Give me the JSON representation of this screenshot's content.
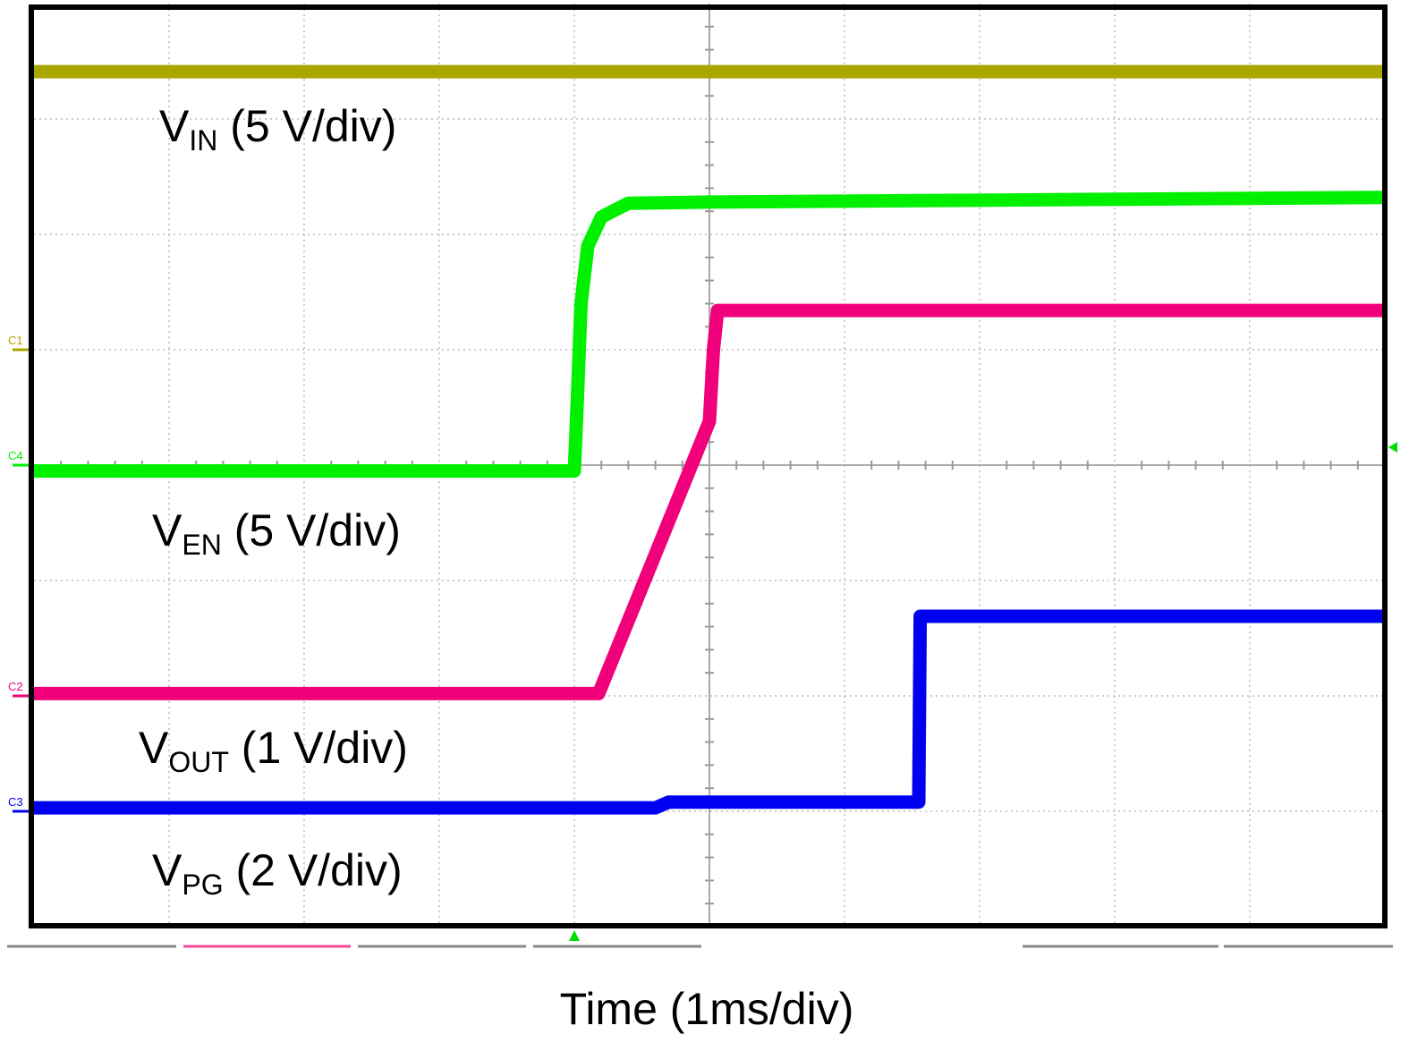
{
  "chart_data": {
    "type": "line",
    "title": "",
    "xlabel": "Time (1ms/div)",
    "ylabel": "",
    "x_unit": "ms",
    "xlim": [
      0,
      10
    ],
    "ylim_divisions": [
      -4,
      4
    ],
    "grid": true,
    "trigger_time_ms": 4.0,
    "series": [
      {
        "name": "VIN",
        "label_main": "V",
        "label_sub": "IN",
        "label_scale": " (5 V/div)",
        "channel": "C1",
        "channel_ref_div": 1.0,
        "color": "#aaa600",
        "points": [
          [
            0,
            3.41
          ],
          [
            10,
            3.41
          ]
        ]
      },
      {
        "name": "VEN",
        "label_main": "V",
        "label_sub": "EN",
        "label_scale": " (5 V/div)",
        "channel": "C4",
        "channel_ref_div": 0.0,
        "color": "#00f000",
        "points": [
          [
            0,
            -0.05
          ],
          [
            4.0,
            -0.05
          ],
          [
            4.02,
            0.5
          ],
          [
            4.05,
            1.4
          ],
          [
            4.1,
            1.9
          ],
          [
            4.2,
            2.15
          ],
          [
            4.4,
            2.27
          ],
          [
            5.0,
            2.28
          ],
          [
            10,
            2.32
          ]
        ]
      },
      {
        "name": "VOUT",
        "label_main": "V",
        "label_sub": "OUT",
        "label_scale": " (1 V/div)",
        "channel": "C2",
        "channel_ref_div": -2.0,
        "color": "#f0007a",
        "points": [
          [
            0,
            -1.98
          ],
          [
            4.18,
            -1.98
          ],
          [
            5.0,
            0.38
          ],
          [
            5.03,
            1.0
          ],
          [
            5.06,
            1.34
          ],
          [
            10,
            1.34
          ]
        ]
      },
      {
        "name": "VPG",
        "label_main": "V",
        "label_sub": "PG",
        "label_scale": " (2 V/div)",
        "channel": "C3",
        "channel_ref_div": -3.0,
        "color": "#0000f0",
        "points": [
          [
            0,
            -2.97
          ],
          [
            4.6,
            -2.97
          ],
          [
            4.7,
            -2.92
          ],
          [
            6.55,
            -2.92
          ],
          [
            6.56,
            -1.31
          ],
          [
            10,
            -1.31
          ]
        ]
      }
    ]
  }
}
